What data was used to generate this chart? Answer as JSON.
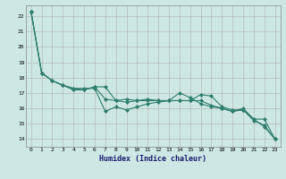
{
  "xlabel": "Humidex (Indice chaleur)",
  "ylabel": "",
  "background_color": "#cde8e4",
  "grid_color": "#b0b0b0",
  "line_color": "#2e7d6e",
  "xlim": [
    -0.5,
    23.5
  ],
  "ylim": [
    13.5,
    22.7
  ],
  "yticks": [
    14,
    15,
    16,
    17,
    18,
    19,
    20,
    21,
    22
  ],
  "xticks": [
    0,
    1,
    2,
    3,
    4,
    5,
    6,
    7,
    8,
    9,
    10,
    11,
    12,
    13,
    14,
    15,
    16,
    17,
    18,
    19,
    20,
    21,
    22,
    23
  ],
  "series": [
    [
      22.3,
      18.3,
      17.8,
      17.5,
      17.3,
      17.3,
      17.3,
      15.8,
      16.1,
      15.9,
      16.1,
      16.3,
      16.4,
      16.5,
      16.5,
      16.5,
      16.9,
      16.8,
      16.1,
      15.9,
      15.9,
      15.3,
      14.8,
      14.0
    ],
    [
      22.3,
      18.3,
      17.8,
      17.5,
      17.2,
      17.2,
      17.4,
      16.6,
      16.5,
      16.4,
      16.5,
      16.6,
      16.5,
      16.5,
      17.0,
      16.7,
      16.3,
      16.1,
      16.0,
      15.8,
      16.0,
      15.3,
      15.3,
      14.0
    ],
    [
      22.3,
      18.3,
      17.8,
      17.5,
      17.3,
      17.2,
      17.4,
      17.4,
      16.5,
      16.6,
      16.5,
      16.5,
      16.5,
      16.5,
      16.5,
      16.5,
      16.5,
      16.2,
      16.0,
      15.8,
      15.9,
      15.2,
      14.9,
      14.0
    ]
  ]
}
